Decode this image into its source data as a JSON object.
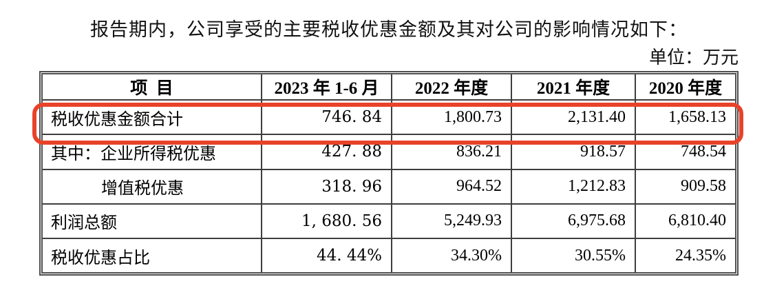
{
  "title": "报告期内，公司享受的主要税收优惠金额及其对公司的影响情况如下：",
  "unit_label": "单位：万元",
  "highlight_color": "#e8432a",
  "table": {
    "headers": [
      "项  目",
      "2023 年 1-6 月",
      "2022 年度",
      "2021 年度",
      "2020 年度"
    ],
    "rows": [
      {
        "label": "税收优惠金额合计",
        "values": [
          "746. 84",
          "1,800.73",
          "2,131.40",
          "1,658.13"
        ],
        "highlighted": "true"
      },
      {
        "label": "其中：企业所得税优惠",
        "values": [
          "427. 88",
          "836.21",
          "918.57",
          "748.54"
        ],
        "highlighted": "false"
      },
      {
        "label": "增值税优惠",
        "values": [
          "318. 96",
          "964.52",
          "1,212.83",
          "909.58"
        ],
        "highlighted": "false"
      },
      {
        "label": "利润总额",
        "values": [
          "1, 680. 56",
          "5,249.93",
          "6,975.68",
          "6,810.40"
        ],
        "highlighted": "false"
      },
      {
        "label": "税收优惠占比",
        "values": [
          "44. 44%",
          "34.30%",
          "30.55%",
          "24.35%"
        ],
        "highlighted": "false"
      }
    ]
  }
}
